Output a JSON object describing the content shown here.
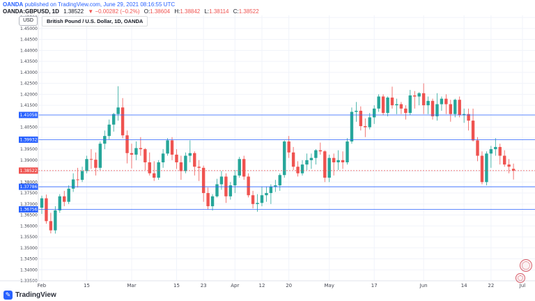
{
  "header": {
    "line1_bold": "OANDA",
    "line1_rest": " published on TradingView.com, June 29, 2021 08:16:55 UTC",
    "symbol": "OANDA:GBPUSD, 1D",
    "price": "1.38522",
    "change": "▼ −0.00282 (−0.2%)",
    "ohlc": {
      "o_label": "O:",
      "o": "1.38604",
      "h_label": "H:",
      "h": "1.38842",
      "l_label": "L:",
      "l": "1.38114",
      "c_label": "C:",
      "c": "1.38522"
    }
  },
  "toolbar": {
    "currency_button": "USD"
  },
  "legend": {
    "title": "British Pound / U.S. Dollar, 1D, OANDA"
  },
  "footer": {
    "brand": "TradingView"
  },
  "colors": {
    "up": "#26a69a",
    "down": "#ef5350",
    "line_blue": "#2962ff",
    "last_price_red": "#ef5350",
    "grid": "#f0f3fa",
    "axis_text": "#434651",
    "header_blue": "#2962ff"
  },
  "chart_data": {
    "type": "candlestick",
    "title": "British Pound / U.S. Dollar, 1D, OANDA",
    "symbol": "GBPUSD",
    "timeframe": "1D",
    "ylim": [
      1.335,
      1.456
    ],
    "y_step": 0.005,
    "price_lines": [
      {
        "value": 1.41058,
        "label": "1.41058",
        "color": "#2962ff"
      },
      {
        "value": 1.39932,
        "label": "1.39932",
        "color": "#2962ff"
      },
      {
        "value": 1.37786,
        "label": "1.37786",
        "color": "#2962ff"
      },
      {
        "value": 1.36756,
        "label": "1.36756",
        "color": "#2962ff"
      }
    ],
    "last_price_label": {
      "value": 1.38522,
      "label": "1.38522",
      "color": "#ef5350"
    },
    "x_ticks": [
      {
        "i": 0,
        "label": "Feb"
      },
      {
        "i": 10,
        "label": "15"
      },
      {
        "i": 20,
        "label": "Mar"
      },
      {
        "i": 30,
        "label": "15"
      },
      {
        "i": 36,
        "label": "23"
      },
      {
        "i": 43,
        "label": "Apr"
      },
      {
        "i": 49,
        "label": "12"
      },
      {
        "i": 55,
        "label": "20"
      },
      {
        "i": 64,
        "label": "May"
      },
      {
        "i": 74,
        "label": "17"
      },
      {
        "i": 85,
        "label": "Jun"
      },
      {
        "i": 94,
        "label": "14"
      },
      {
        "i": 100,
        "label": "22"
      },
      {
        "i": 107,
        "label": "Jul"
      }
    ],
    "candles": [
      [
        1.3683,
        1.3738,
        1.3655,
        1.3726
      ],
      [
        1.3726,
        1.3743,
        1.361,
        1.3622
      ],
      [
        1.3622,
        1.366,
        1.3566,
        1.358
      ],
      [
        1.358,
        1.369,
        1.3565,
        1.3671
      ],
      [
        1.3671,
        1.3745,
        1.366,
        1.3735
      ],
      [
        1.3735,
        1.376,
        1.369,
        1.371
      ],
      [
        1.371,
        1.3785,
        1.37,
        1.377
      ],
      [
        1.377,
        1.384,
        1.3755,
        1.3812
      ],
      [
        1.3812,
        1.3865,
        1.3775,
        1.381
      ],
      [
        1.381,
        1.387,
        1.38,
        1.385
      ],
      [
        1.385,
        1.392,
        1.384,
        1.3905
      ],
      [
        1.3905,
        1.395,
        1.386,
        1.3902
      ],
      [
        1.3902,
        1.3935,
        1.383,
        1.3865
      ],
      [
        1.3865,
        1.3985,
        1.3855,
        1.3975
      ],
      [
        1.3975,
        1.4035,
        1.395,
        1.401
      ],
      [
        1.401,
        1.4085,
        1.3995,
        1.4062
      ],
      [
        1.4062,
        1.4115,
        1.403,
        1.411
      ],
      [
        1.411,
        1.4237,
        1.408,
        1.414
      ],
      [
        1.414,
        1.4183,
        1.4,
        1.4013
      ],
      [
        1.4013,
        1.4035,
        1.3885,
        1.3932
      ],
      [
        1.3932,
        1.3975,
        1.3862,
        1.3925
      ],
      [
        1.3925,
        1.3985,
        1.39,
        1.3955
      ],
      [
        1.3955,
        1.4005,
        1.392,
        1.395
      ],
      [
        1.395,
        1.3955,
        1.3855,
        1.389
      ],
      [
        1.389,
        1.3935,
        1.383,
        1.384
      ],
      [
        1.384,
        1.3895,
        1.3805,
        1.382
      ],
      [
        1.382,
        1.39,
        1.381,
        1.389
      ],
      [
        1.389,
        1.395,
        1.3865,
        1.393
      ],
      [
        1.393,
        1.4,
        1.392,
        1.399
      ],
      [
        1.399,
        1.4005,
        1.39,
        1.3925
      ],
      [
        1.3925,
        1.395,
        1.386,
        1.389
      ],
      [
        1.389,
        1.392,
        1.381,
        1.385
      ],
      [
        1.385,
        1.3935,
        1.384,
        1.392
      ],
      [
        1.392,
        1.399,
        1.389,
        1.3932
      ],
      [
        1.3932,
        1.394,
        1.383,
        1.387
      ],
      [
        1.387,
        1.39,
        1.3805,
        1.3865
      ],
      [
        1.3865,
        1.3875,
        1.371,
        1.375
      ],
      [
        1.375,
        1.3775,
        1.3675,
        1.369
      ],
      [
        1.369,
        1.3745,
        1.367,
        1.3735
      ],
      [
        1.3735,
        1.3815,
        1.373,
        1.379
      ],
      [
        1.379,
        1.385,
        1.3765,
        1.3825
      ],
      [
        1.3825,
        1.384,
        1.3705,
        1.3735
      ],
      [
        1.3735,
        1.38,
        1.372,
        1.3785
      ],
      [
        1.3785,
        1.3855,
        1.375,
        1.383
      ],
      [
        1.383,
        1.3915,
        1.382,
        1.3905
      ],
      [
        1.3905,
        1.392,
        1.381,
        1.3825
      ],
      [
        1.3825,
        1.384,
        1.373,
        1.374
      ],
      [
        1.374,
        1.376,
        1.368,
        1.37
      ],
      [
        1.37,
        1.3745,
        1.3665,
        1.3705
      ],
      [
        1.3705,
        1.378,
        1.369,
        1.374
      ],
      [
        1.374,
        1.378,
        1.371,
        1.375
      ],
      [
        1.375,
        1.379,
        1.37,
        1.378
      ],
      [
        1.378,
        1.381,
        1.3755,
        1.3785
      ],
      [
        1.3785,
        1.384,
        1.376,
        1.3832
      ],
      [
        1.3832,
        1.399,
        1.382,
        1.3985
      ],
      [
        1.3985,
        1.401,
        1.391,
        1.3935
      ],
      [
        1.3935,
        1.396,
        1.3855,
        1.387
      ],
      [
        1.387,
        1.3895,
        1.3825,
        1.384
      ],
      [
        1.384,
        1.39,
        1.383,
        1.388
      ],
      [
        1.388,
        1.393,
        1.3855,
        1.39
      ],
      [
        1.39,
        1.393,
        1.386,
        1.391
      ],
      [
        1.391,
        1.395,
        1.388,
        1.3945
      ],
      [
        1.3945,
        1.398,
        1.3925,
        1.394
      ],
      [
        1.394,
        1.3945,
        1.38,
        1.382
      ],
      [
        1.382,
        1.3925,
        1.38,
        1.391
      ],
      [
        1.391,
        1.393,
        1.383,
        1.389
      ],
      [
        1.389,
        1.3945,
        1.3855,
        1.39
      ],
      [
        1.39,
        1.394,
        1.386,
        1.389
      ],
      [
        1.389,
        1.4,
        1.388,
        1.3985
      ],
      [
        1.3985,
        1.414,
        1.3975,
        1.412
      ],
      [
        1.412,
        1.4165,
        1.4075,
        1.4125
      ],
      [
        1.4125,
        1.4145,
        1.4035,
        1.4055
      ],
      [
        1.4055,
        1.409,
        1.4005,
        1.405
      ],
      [
        1.405,
        1.4115,
        1.404,
        1.4095
      ],
      [
        1.4095,
        1.415,
        1.4065,
        1.4135
      ],
      [
        1.4135,
        1.42,
        1.412,
        1.419
      ],
      [
        1.419,
        1.42,
        1.4105,
        1.4115
      ],
      [
        1.4115,
        1.419,
        1.41,
        1.4185
      ],
      [
        1.4185,
        1.4235,
        1.4135,
        1.415
      ],
      [
        1.415,
        1.418,
        1.411,
        1.4155
      ],
      [
        1.4155,
        1.4165,
        1.411,
        1.4135
      ],
      [
        1.4135,
        1.415,
        1.4085,
        1.4115
      ],
      [
        1.4115,
        1.422,
        1.4105,
        1.4195
      ],
      [
        1.4195,
        1.4215,
        1.4135,
        1.419
      ],
      [
        1.419,
        1.421,
        1.415,
        1.4205
      ],
      [
        1.4205,
        1.425,
        1.411,
        1.415
      ],
      [
        1.415,
        1.419,
        1.411,
        1.417
      ],
      [
        1.417,
        1.418,
        1.4085,
        1.41
      ],
      [
        1.41,
        1.4205,
        1.408,
        1.4155
      ],
      [
        1.4155,
        1.419,
        1.4125,
        1.418
      ],
      [
        1.418,
        1.42,
        1.411,
        1.4155
      ],
      [
        1.4155,
        1.4175,
        1.4075,
        1.411
      ],
      [
        1.411,
        1.418,
        1.4095,
        1.4175
      ],
      [
        1.4175,
        1.419,
        1.4095,
        1.4105
      ],
      [
        1.4105,
        1.4135,
        1.407,
        1.411
      ],
      [
        1.411,
        1.4135,
        1.4035,
        1.408
      ],
      [
        1.408,
        1.4135,
        1.3985,
        1.399
      ],
      [
        1.399,
        1.4005,
        1.3895,
        1.392
      ],
      [
        1.392,
        1.394,
        1.379,
        1.38
      ],
      [
        1.38,
        1.394,
        1.3785,
        1.393
      ],
      [
        1.393,
        1.3965,
        1.3865,
        1.395
      ],
      [
        1.395,
        1.4,
        1.392,
        1.396
      ],
      [
        1.396,
        1.3975,
        1.388,
        1.392
      ],
      [
        1.392,
        1.3945,
        1.387,
        1.388
      ],
      [
        1.388,
        1.3905,
        1.384,
        1.387
      ],
      [
        1.38604,
        1.38842,
        1.38114,
        1.38522
      ]
    ]
  }
}
